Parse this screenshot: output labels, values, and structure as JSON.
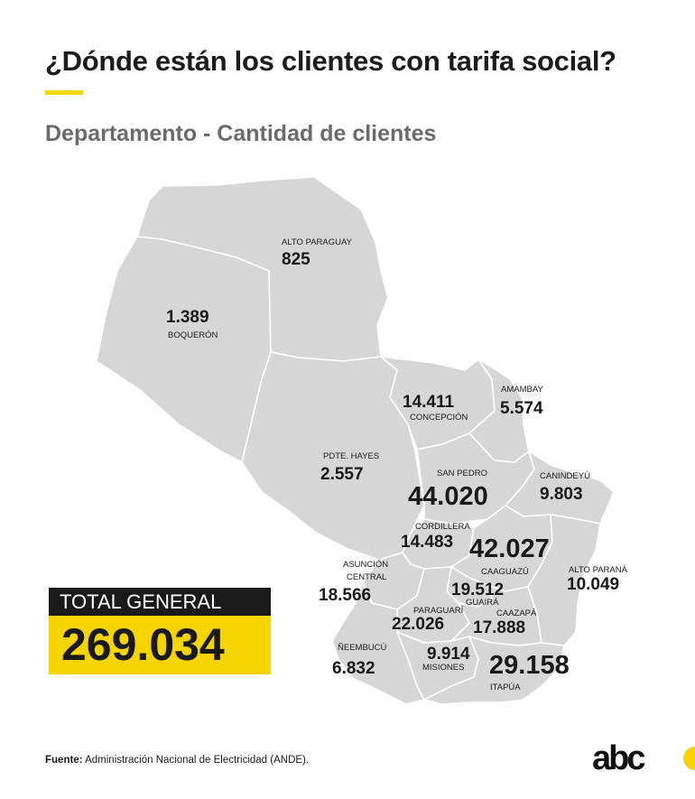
{
  "header": {
    "title": "¿Dónde están los clientes con tarifa social?",
    "subtitle": "Departamento - Cantidad de clientes",
    "accent_color": "#f5d400"
  },
  "map": {
    "fill_color": "#d6d6d6",
    "departments": [
      {
        "id": "alto-paraguay",
        "name": "ALTO PARAGUAY",
        "value": "825"
      },
      {
        "id": "boqueron",
        "name": "BOQUERÓN",
        "value": "1.389"
      },
      {
        "id": "concepcion",
        "name": "CONCEPCIÓN",
        "value": "14.411"
      },
      {
        "id": "amambay",
        "name": "AMAMBAY",
        "value": "5.574"
      },
      {
        "id": "pdte-hayes",
        "name": "PDTE. HAYES",
        "value": "2.557"
      },
      {
        "id": "san-pedro",
        "name": "SAN PEDRO",
        "value": "44.020"
      },
      {
        "id": "canindeyu",
        "name": "CANINDEYÚ",
        "value": "9.803"
      },
      {
        "id": "cordillera",
        "name": "CORDILLERA",
        "value": "14.483"
      },
      {
        "id": "caaguazu",
        "name": "CAAGUAZÚ",
        "value": "42.027"
      },
      {
        "id": "asuncion",
        "name": "ASUNCIÓN",
        "value": ""
      },
      {
        "id": "central",
        "name": "CENTRAL",
        "value": "18.566"
      },
      {
        "id": "guaira",
        "name": "GUAIRÁ",
        "value": "19.512"
      },
      {
        "id": "alto-parana",
        "name": "ALTO PARANÁ",
        "value": "10.049"
      },
      {
        "id": "paraguari",
        "name": "PARAGUARÍ",
        "value": "22.026"
      },
      {
        "id": "caazapa",
        "name": "CAAZAPÁ",
        "value": "17.888"
      },
      {
        "id": "neembucu",
        "name": "ÑEEMBUCÚ",
        "value": "6.832"
      },
      {
        "id": "misiones",
        "name": "MISIONES",
        "value": "9.914"
      },
      {
        "id": "itapua",
        "name": "ITAPÚA",
        "value": "29.158"
      }
    ]
  },
  "total": {
    "label": "TOTAL GENERAL",
    "value": "269.034",
    "label_bg": "#1a1a1a",
    "value_bg": "#f5d400"
  },
  "footer": {
    "source_label": "Fuente:",
    "source_text": " Administración Nacional de Electricidad (ANDE).",
    "logo_text": "abc"
  }
}
